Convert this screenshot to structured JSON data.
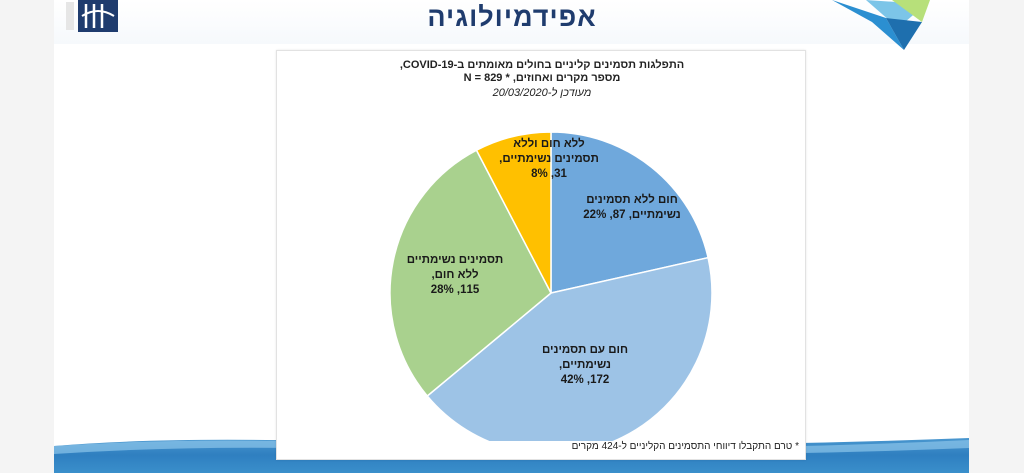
{
  "slide": {
    "title": "אפידמיולוגיה"
  },
  "colors": {
    "title": "#1f3c6e",
    "bottom_band": "#2f7fc0"
  },
  "chart_data": {
    "type": "pie",
    "title_line1": "התפלגות תסמינים קליניים בחולים מאומתים ב-COVID-19,",
    "title_line2": "מספר מקרים ואחוזים, * N = 829",
    "subtitle": "מעודכן ל-20/03/2020",
    "footnote": "* טרם התקבלו דיווחי התסמינים הקליניים ל-424 מקרים",
    "slices": [
      {
        "line1": "חום ללא תסמינים",
        "line2": "נשימתיים, 87, 22%",
        "line3": "",
        "value": 87,
        "percent": 22,
        "color": "#6fa8dc"
      },
      {
        "line1": "חום עם תסמינים",
        "line2": "נשימתיים,",
        "line3": "172, 42%",
        "value": 172,
        "percent": 42,
        "color": "#9dc3e6"
      },
      {
        "line1": "תסמינים נשימתיים",
        "line2": "ללא חום,",
        "line3": "115, 28%",
        "value": 115,
        "percent": 28,
        "color": "#a9d18e"
      },
      {
        "line1": "ללא חום וללא",
        "line2": "תסמינים נשימתיים,",
        "line3": "31, 8%",
        "value": 31,
        "percent": 8,
        "color": "#ffc000"
      }
    ]
  }
}
